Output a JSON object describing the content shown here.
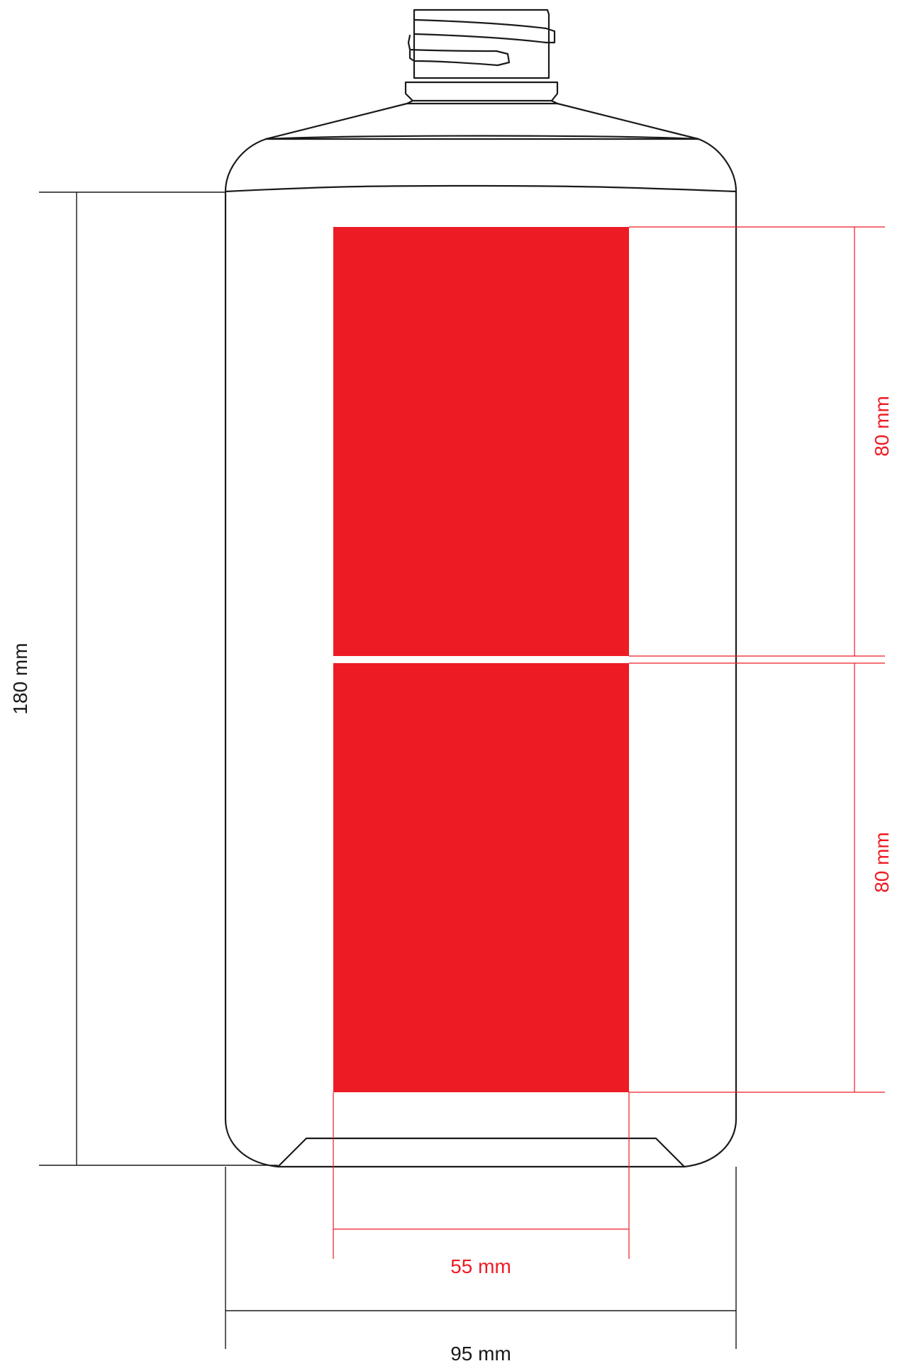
{
  "colors": {
    "label_fill": "#ed1c24",
    "outline": "#1a1a1a",
    "red_dimension": "#ed1c24",
    "background": "#ffffff"
  },
  "dimensions": {
    "height_label": "180 mm",
    "width_label": "95 mm",
    "label_width": "55 mm",
    "upper_label_height": "80 mm",
    "lower_label_height": "80 mm"
  }
}
